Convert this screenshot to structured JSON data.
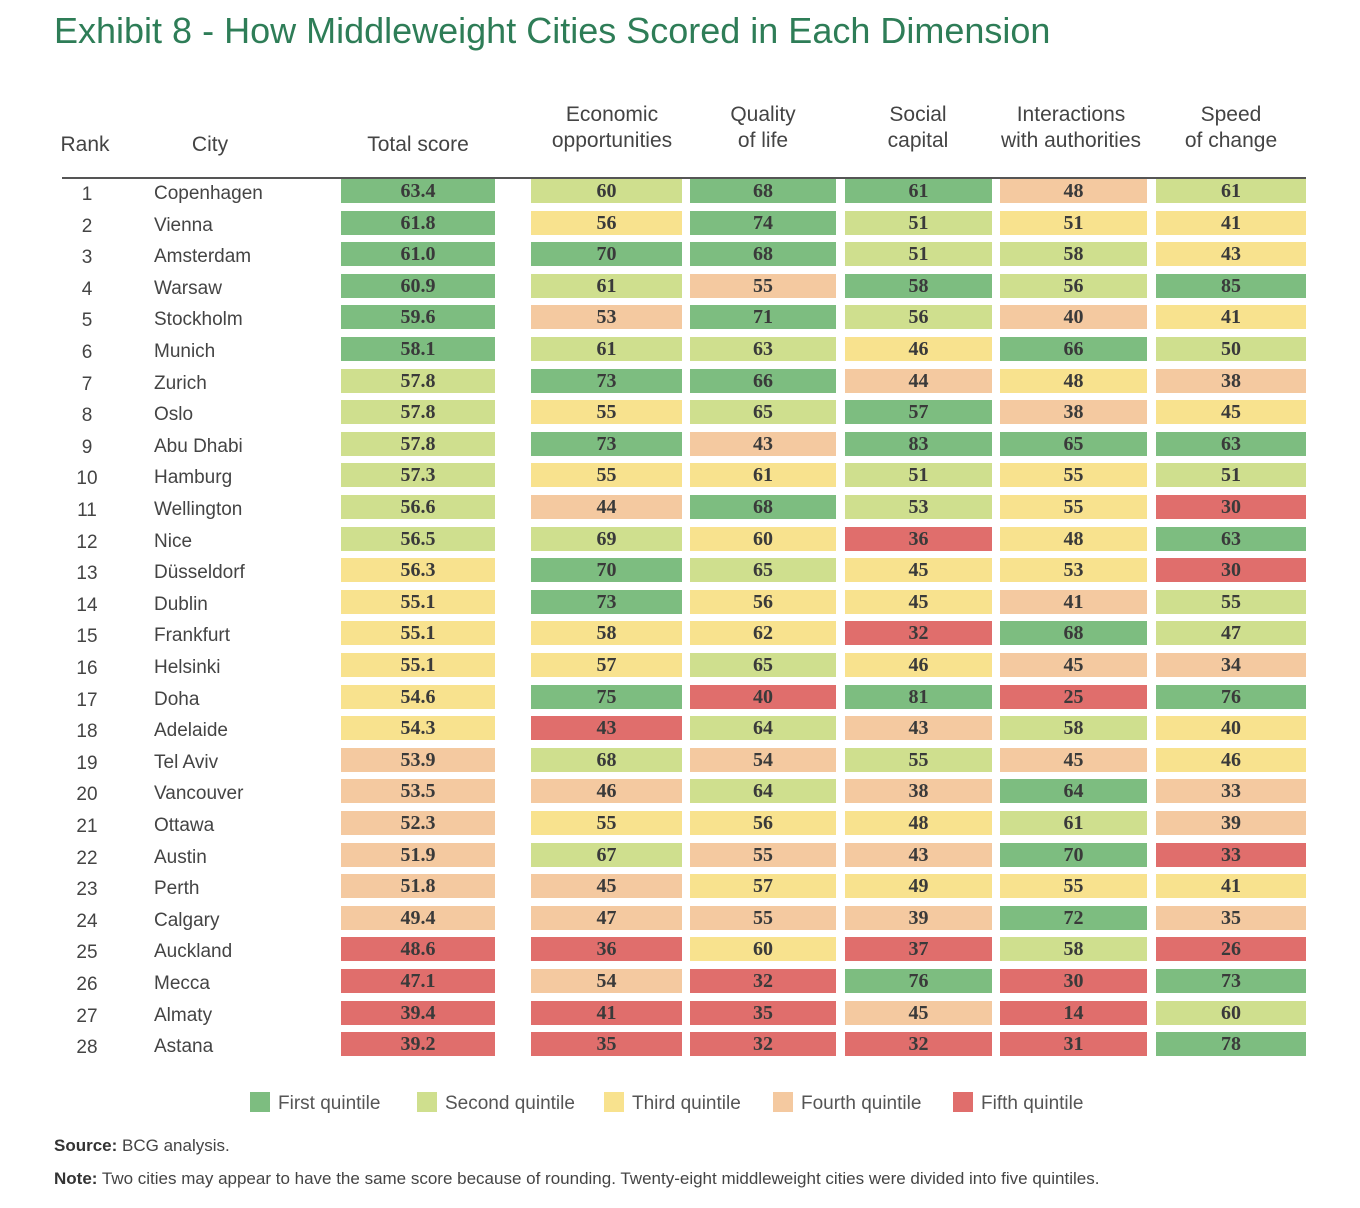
{
  "title": "Exhibit 8 - How Middleweight Cities Scored in Each Dimension",
  "headers": {
    "rank": "Rank",
    "city": "City",
    "total": "Total score",
    "economic": "Economic\nopportunities",
    "quality": "Quality\nof life",
    "social": "Social\ncapital",
    "interactions": "Interactions\nwith authorities",
    "speed": "Speed\nof change"
  },
  "quintile_colors": {
    "1": "#7dbd80",
    "2": "#cfdf8e",
    "3": "#f8e28e",
    "4": "#f4c9a0",
    "5": "#e06e6c"
  },
  "legend": [
    {
      "label": "First quintile",
      "q": 1
    },
    {
      "label": "Second quintile",
      "q": 2
    },
    {
      "label": "Third quintile",
      "q": 3
    },
    {
      "label": "Fourth quintile",
      "q": 4
    },
    {
      "label": "Fifth quintile",
      "q": 5
    }
  ],
  "chart_data": {
    "type": "table",
    "columns": [
      "Rank",
      "City",
      "Total score",
      "Economic opportunities",
      "Quality of life",
      "Social capital",
      "Interactions with authorities",
      "Speed of change"
    ],
    "rows": [
      {
        "rank": "1",
        "city": "Copenhagen",
        "total": "63.4",
        "tq": 1,
        "scores": [
          "60",
          "68",
          "61",
          "48",
          "61"
        ],
        "q": [
          2,
          1,
          1,
          4,
          2
        ]
      },
      {
        "rank": "2",
        "city": "Vienna",
        "total": "61.8",
        "tq": 1,
        "scores": [
          "56",
          "74",
          "51",
          "51",
          "41"
        ],
        "q": [
          3,
          1,
          2,
          3,
          3
        ]
      },
      {
        "rank": "3",
        "city": "Amsterdam",
        "total": "61.0",
        "tq": 1,
        "scores": [
          "70",
          "68",
          "51",
          "58",
          "43"
        ],
        "q": [
          1,
          1,
          2,
          2,
          3
        ]
      },
      {
        "rank": "4",
        "city": "Warsaw",
        "total": "60.9",
        "tq": 1,
        "scores": [
          "61",
          "55",
          "58",
          "56",
          "85"
        ],
        "q": [
          2,
          4,
          1,
          2,
          1
        ]
      },
      {
        "rank": "5",
        "city": "Stockholm",
        "total": "59.6",
        "tq": 1,
        "scores": [
          "53",
          "71",
          "56",
          "40",
          "41"
        ],
        "q": [
          4,
          1,
          2,
          4,
          3
        ]
      },
      {
        "rank": "6",
        "city": "Munich",
        "total": "58.1",
        "tq": 1,
        "scores": [
          "61",
          "63",
          "46",
          "66",
          "50"
        ],
        "q": [
          2,
          2,
          3,
          1,
          2
        ]
      },
      {
        "rank": "7",
        "city": "Zurich",
        "total": "57.8",
        "tq": 2,
        "scores": [
          "73",
          "66",
          "44",
          "48",
          "38"
        ],
        "q": [
          1,
          1,
          4,
          3,
          4
        ]
      },
      {
        "rank": "8",
        "city": "Oslo",
        "total": "57.8",
        "tq": 2,
        "scores": [
          "55",
          "65",
          "57",
          "38",
          "45"
        ],
        "q": [
          3,
          2,
          1,
          4,
          3
        ]
      },
      {
        "rank": "9",
        "city": "Abu Dhabi",
        "total": "57.8",
        "tq": 2,
        "scores": [
          "73",
          "43",
          "83",
          "65",
          "63"
        ],
        "q": [
          1,
          4,
          1,
          1,
          1
        ]
      },
      {
        "rank": "10",
        "city": "Hamburg",
        "total": "57.3",
        "tq": 2,
        "scores": [
          "55",
          "61",
          "51",
          "55",
          "51"
        ],
        "q": [
          3,
          3,
          2,
          3,
          2
        ]
      },
      {
        "rank": "11",
        "city": "Wellington",
        "total": "56.6",
        "tq": 2,
        "scores": [
          "44",
          "68",
          "53",
          "55",
          "30"
        ],
        "q": [
          4,
          1,
          2,
          3,
          5
        ]
      },
      {
        "rank": "12",
        "city": "Nice",
        "total": "56.5",
        "tq": 2,
        "scores": [
          "69",
          "60",
          "36",
          "48",
          "63"
        ],
        "q": [
          2,
          3,
          5,
          3,
          1
        ]
      },
      {
        "rank": "13",
        "city": "Düsseldorf",
        "total": "56.3",
        "tq": 3,
        "scores": [
          "70",
          "65",
          "45",
          "53",
          "30"
        ],
        "q": [
          1,
          2,
          3,
          3,
          5
        ]
      },
      {
        "rank": "14",
        "city": "Dublin",
        "total": "55.1",
        "tq": 3,
        "scores": [
          "73",
          "56",
          "45",
          "41",
          "55"
        ],
        "q": [
          1,
          3,
          3,
          4,
          2
        ]
      },
      {
        "rank": "15",
        "city": "Frankfurt",
        "total": "55.1",
        "tq": 3,
        "scores": [
          "58",
          "62",
          "32",
          "68",
          "47"
        ],
        "q": [
          3,
          3,
          5,
          1,
          2
        ]
      },
      {
        "rank": "16",
        "city": "Helsinki",
        "total": "55.1",
        "tq": 3,
        "scores": [
          "57",
          "65",
          "46",
          "45",
          "34"
        ],
        "q": [
          3,
          2,
          3,
          4,
          4
        ]
      },
      {
        "rank": "17",
        "city": "Doha",
        "total": "54.6",
        "tq": 3,
        "scores": [
          "75",
          "40",
          "81",
          "25",
          "76"
        ],
        "q": [
          1,
          5,
          1,
          5,
          1
        ]
      },
      {
        "rank": "18",
        "city": "Adelaide",
        "total": "54.3",
        "tq": 3,
        "scores": [
          "43",
          "64",
          "43",
          "58",
          "40"
        ],
        "q": [
          5,
          2,
          4,
          2,
          3
        ]
      },
      {
        "rank": "19",
        "city": "Tel Aviv",
        "total": "53.9",
        "tq": 4,
        "scores": [
          "68",
          "54",
          "55",
          "45",
          "46"
        ],
        "q": [
          2,
          4,
          2,
          4,
          3
        ]
      },
      {
        "rank": "20",
        "city": "Vancouver",
        "total": "53.5",
        "tq": 4,
        "scores": [
          "46",
          "64",
          "38",
          "64",
          "33"
        ],
        "q": [
          4,
          2,
          4,
          1,
          4
        ]
      },
      {
        "rank": "21",
        "city": "Ottawa",
        "total": "52.3",
        "tq": 4,
        "scores": [
          "55",
          "56",
          "48",
          "61",
          "39"
        ],
        "q": [
          3,
          3,
          3,
          2,
          4
        ]
      },
      {
        "rank": "22",
        "city": "Austin",
        "total": "51.9",
        "tq": 4,
        "scores": [
          "67",
          "55",
          "43",
          "70",
          "33"
        ],
        "q": [
          2,
          4,
          4,
          1,
          5
        ]
      },
      {
        "rank": "23",
        "city": "Perth",
        "total": "51.8",
        "tq": 4,
        "scores": [
          "45",
          "57",
          "49",
          "55",
          "41"
        ],
        "q": [
          4,
          3,
          3,
          3,
          3
        ]
      },
      {
        "rank": "24",
        "city": "Calgary",
        "total": "49.4",
        "tq": 4,
        "scores": [
          "47",
          "55",
          "39",
          "72",
          "35"
        ],
        "q": [
          4,
          4,
          4,
          1,
          4
        ]
      },
      {
        "rank": "25",
        "city": "Auckland",
        "total": "48.6",
        "tq": 5,
        "scores": [
          "36",
          "60",
          "37",
          "58",
          "26"
        ],
        "q": [
          5,
          3,
          5,
          2,
          5
        ]
      },
      {
        "rank": "26",
        "city": "Mecca",
        "total": "47.1",
        "tq": 5,
        "scores": [
          "54",
          "32",
          "76",
          "30",
          "73"
        ],
        "q": [
          4,
          5,
          1,
          5,
          1
        ]
      },
      {
        "rank": "27",
        "city": "Almaty",
        "total": "39.4",
        "tq": 5,
        "scores": [
          "41",
          "35",
          "45",
          "14",
          "60"
        ],
        "q": [
          5,
          5,
          4,
          5,
          2
        ]
      },
      {
        "rank": "28",
        "city": "Astana",
        "total": "39.2",
        "tq": 5,
        "scores": [
          "35",
          "32",
          "32",
          "31",
          "78"
        ],
        "q": [
          5,
          5,
          5,
          5,
          1
        ]
      }
    ]
  },
  "source": {
    "label": "Source:",
    "text": " BCG analysis."
  },
  "note": {
    "label": "Note:",
    "text": " Two cities may appear to have the same score because of rounding. Twenty-eight middleweight cities were divided into five quintiles."
  }
}
